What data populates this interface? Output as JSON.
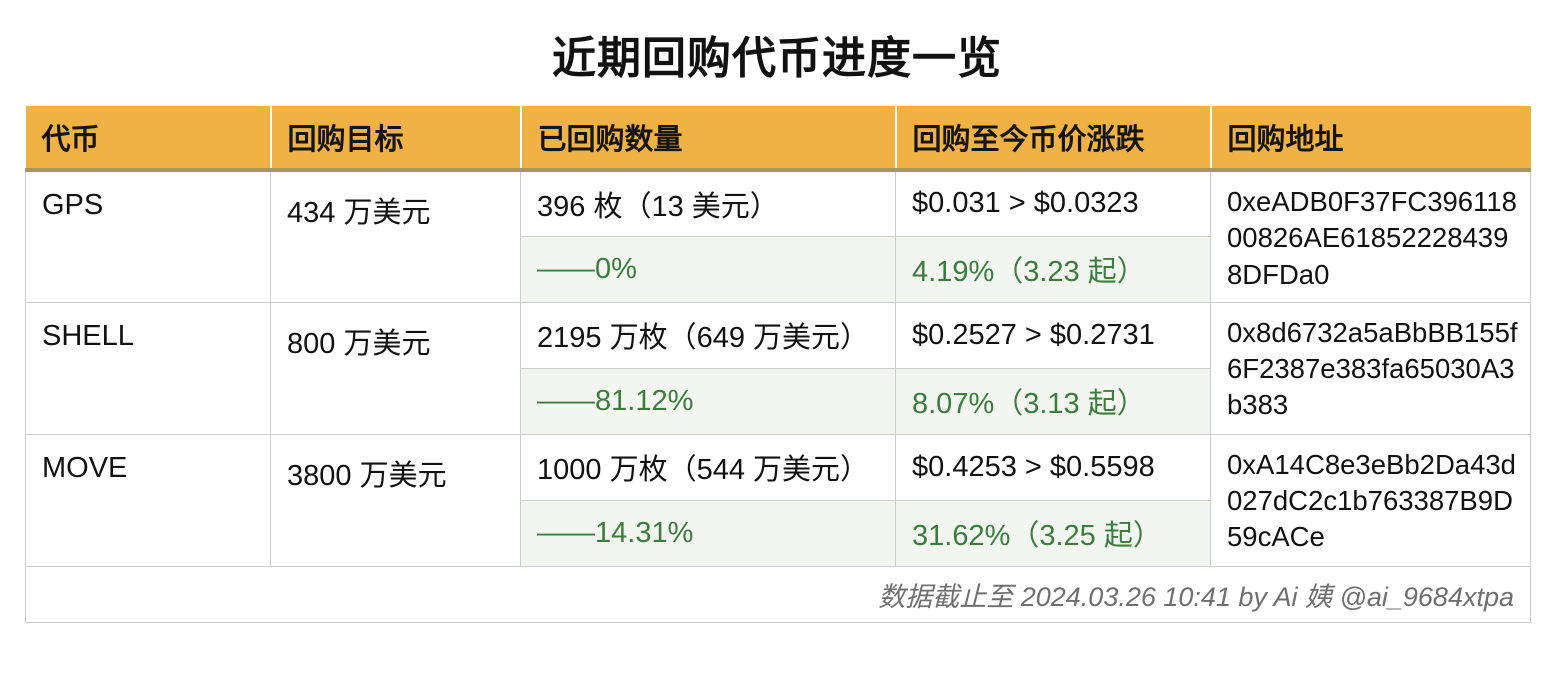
{
  "title": "近期回购代币进度一览",
  "footer": "数据截止至 2024.03.26 10:41  by Ai 姨 @ai_9684xtpa",
  "colors": {
    "header_bg": "#F0B245",
    "header_bottom_border": "#A79862",
    "green_text": "#3A7D3C",
    "subrow_bg": "#F3F5F1",
    "cell_border": "#CCCCCC",
    "footer_text": "#6F6F6F"
  },
  "chart_data": {
    "type": "table",
    "title": "近期回购代币进度一览",
    "headers": [
      "代币",
      "回购目标",
      "已回购数量",
      "回购至今币价涨跌",
      "回购地址"
    ],
    "rows": [
      {
        "token": "GPS",
        "target": "434 万美元",
        "repurchased": "396 枚（13 美元）",
        "progress": "——0%",
        "price_change": "$0.031 > $0.0323",
        "gain": "4.19%（3.23 起）",
        "address": "0xeADB0F37FC39611800826AE618522284398DFDa0"
      },
      {
        "token": "SHELL",
        "target": "800 万美元",
        "repurchased": "2195 万枚（649 万美元）",
        "progress": "——81.12%",
        "price_change": "$0.2527 > $0.2731",
        "gain": "8.07%（3.13 起）",
        "address": "0x8d6732a5aBbBB155f6F2387e383fa65030A3b383"
      },
      {
        "token": "MOVE",
        "target": "3800 万美元",
        "repurchased": "1000 万枚（544 万美元）",
        "progress": "——14.31%",
        "price_change": "$0.4253 > $0.5598",
        "gain": "31.62%（3.25 起）",
        "address": "0xA14C8e3eBb2Da43d027dC2c1b763387B9D59cACe"
      }
    ]
  }
}
